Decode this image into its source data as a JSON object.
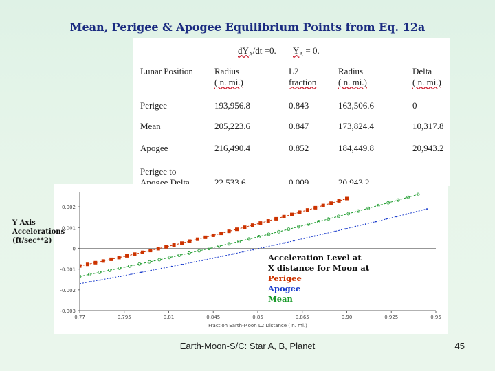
{
  "slide": {
    "title": "Mean, Perigee & Apogee Equilibrium Points from Eq. 12a",
    "footer": "Earth-Moon-S/C: Star A, B, Planet",
    "page_number": "45"
  },
  "table": {
    "condition_a": "dY",
    "condition_a_sub": "A",
    "condition_a_rest": "/dt =0.",
    "condition_b": "Y",
    "condition_b_sub": "A",
    "condition_b_rest": " = 0.",
    "headers": [
      {
        "line1": "Lunar Position",
        "line2": ""
      },
      {
        "line1": "Radius",
        "line2": "( n. mi.)"
      },
      {
        "line1": "L2",
        "line2": "fraction"
      },
      {
        "line1": "Radius",
        "line2": "( n. mi.)"
      },
      {
        "line1": "Delta",
        "line2": "( n. mi.)"
      }
    ],
    "rows": [
      {
        "label": "Perigee",
        "label2": "",
        "radius1": "193,956.8",
        "fraction": "0.843",
        "radius2": "163,506.6",
        "delta": "0"
      },
      {
        "label": "Mean",
        "label2": "",
        "radius1": "205,223.6",
        "fraction": "0.847",
        "radius2": "173,824.4",
        "delta": "10,317.8"
      },
      {
        "label": "Apogee",
        "label2": "",
        "radius1": "216,490.4",
        "fraction": "0.852",
        "radius2": "184,449.8",
        "delta": "20,943.2"
      },
      {
        "label": "Perigee to",
        "label2": "Apogee Delta",
        "radius1": "22,533.6",
        "fraction": "0.009",
        "radius2": "20,943.2",
        "delta": ""
      }
    ]
  },
  "side_label": {
    "line1": "Y Axis",
    "line2": "Accelerations",
    "line3": "(ft/sec**2)"
  },
  "legend": {
    "line1": "Acceleration Level at",
    "line2": "X distance for Moon at",
    "perigee": "Perigee",
    "apogee": "Apogee",
    "mean": "Mean",
    "perigee_color": "#cc3300",
    "apogee_color": "#1a3ccc",
    "mean_color": "#1a9a2a"
  },
  "chart_data": {
    "type": "line",
    "xlabel": "Fraction Earth-Moon L2 Distance ( n. mi.)",
    "ylabel": "",
    "xlim": [
      0.77,
      0.97
    ],
    "ylim": [
      -0.003,
      0.0025
    ],
    "x_ticks": [
      "0.77",
      "0.795",
      "0.81",
      "0.845",
      "0.85",
      "0.865",
      "0.90",
      "0.925",
      "0.95"
    ],
    "y_ticks": [
      "0.002",
      "0.001",
      "0",
      "-0.001",
      "-0.002",
      "-0.003"
    ],
    "series": [
      {
        "name": "Perigee",
        "color": "#cc3300",
        "marker": "square",
        "x0": 0.77,
        "x1": 0.92,
        "y0": -0.00085,
        "y1": 0.0024
      },
      {
        "name": "Mean",
        "color": "#1a9a2a",
        "marker": "circle",
        "x0": 0.77,
        "x1": 0.96,
        "y0": -0.00135,
        "y1": 0.0026
      },
      {
        "name": "Apogee",
        "color": "#1a3ccc",
        "marker": "dot",
        "x0": 0.77,
        "x1": 0.965,
        "y0": -0.0017,
        "y1": 0.0019
      }
    ]
  }
}
